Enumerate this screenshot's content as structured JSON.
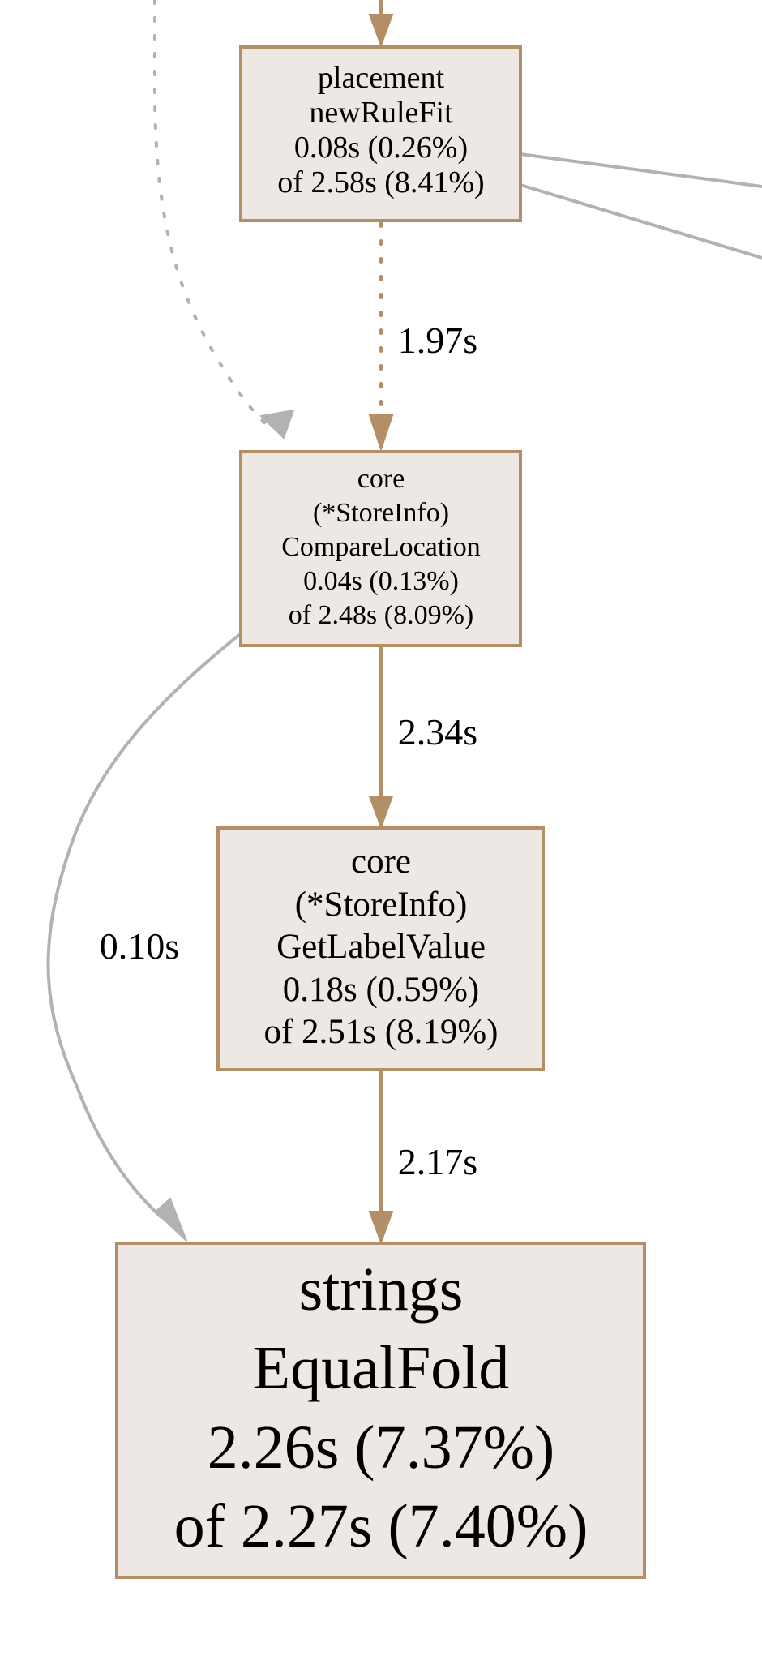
{
  "graph": {
    "nodes": {
      "placement": {
        "lines": [
          "placement",
          "newRuleFit",
          "0.08s (0.26%)",
          "of 2.58s (8.41%)"
        ]
      },
      "compare_location": {
        "lines": [
          "core",
          "(*StoreInfo)",
          "CompareLocation",
          "0.04s (0.13%)",
          "of 2.48s (8.09%)"
        ]
      },
      "get_label_value": {
        "lines": [
          "core",
          "(*StoreInfo)",
          "GetLabelValue",
          "0.18s (0.59%)",
          "of 2.51s (8.19%)"
        ]
      },
      "equal_fold": {
        "lines": [
          "strings",
          "EqualFold",
          "2.26s (7.37%)",
          "of 2.27s (7.40%)"
        ]
      }
    },
    "edges": {
      "placement_to_compare": {
        "label": "1.97s"
      },
      "compare_to_getlabel": {
        "label": "2.34s"
      },
      "compare_to_equalfold": {
        "label": "0.10s"
      },
      "getlabel_to_equalfold": {
        "label": "2.17s"
      }
    },
    "colors": {
      "node_fill": "#ede8e3",
      "node_border": "#b38f67",
      "edge_brown": "#b38f67",
      "edge_gray": "#b2b2b0"
    }
  }
}
